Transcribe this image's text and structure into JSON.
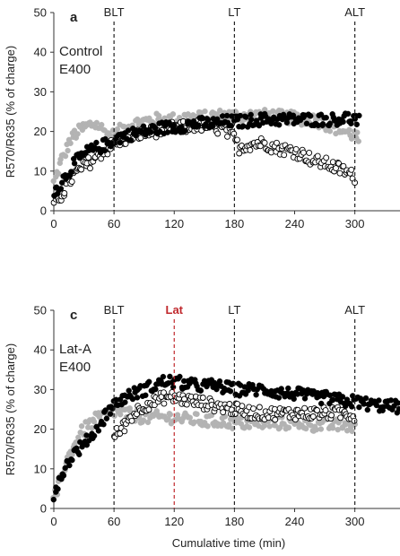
{
  "chart_data": [
    {
      "type": "scatter",
      "panel_letter": "a",
      "inset_lines": [
        "Control",
        "E400"
      ],
      "ylabel": "R570/R635 (% of charge)",
      "xlabel": "",
      "xlim": [
        0,
        345
      ],
      "ylim": [
        0,
        50
      ],
      "xticks": [
        0,
        60,
        120,
        180,
        240,
        300
      ],
      "yticks": [
        0,
        10,
        20,
        30,
        40,
        50
      ],
      "grid": false,
      "vlines": [
        {
          "x": 60,
          "label": "BLT",
          "color": "#222222"
        },
        {
          "x": 180,
          "label": "LT",
          "color": "#222222"
        },
        {
          "x": 300,
          "label": "ALT",
          "color": "#222222"
        }
      ],
      "series_colors": [
        "#000000",
        "#ffffff",
        "#b3b3b3"
      ],
      "series": [
        {
          "style": "filled-black",
          "x": [
            0,
            5,
            10,
            15,
            20,
            25,
            30,
            35,
            40,
            45,
            50,
            55,
            60,
            70,
            80,
            90,
            100,
            110,
            120,
            130,
            140,
            150,
            160,
            170,
            180,
            190,
            200,
            210,
            220,
            230,
            240,
            250,
            260,
            270,
            280,
            290,
            300,
            305
          ],
          "y": [
            5,
            6,
            8,
            10,
            12,
            13,
            14,
            15,
            15.5,
            16,
            16.5,
            17,
            18,
            19,
            19.5,
            20,
            20.5,
            21,
            21,
            21.5,
            22,
            22,
            22,
            22.5,
            22.5,
            22.5,
            23,
            23,
            23,
            23,
            23,
            23,
            23,
            23,
            23,
            23.5,
            23,
            22.5
          ]
        },
        {
          "style": "open-circle",
          "x": [
            0,
            5,
            10,
            15,
            20,
            25,
            30,
            35,
            40,
            45,
            50,
            55,
            60,
            70,
            80,
            90,
            100,
            110,
            120,
            130,
            140,
            150,
            160,
            170,
            180,
            185,
            190,
            200,
            210,
            220,
            230,
            240,
            250,
            260,
            270,
            280,
            290,
            300
          ],
          "y": [
            1,
            3,
            5,
            7,
            9,
            10,
            11,
            12,
            13,
            14,
            15,
            16,
            17,
            18,
            19,
            19.5,
            20,
            20.5,
            21,
            21,
            21.5,
            21.5,
            21,
            20.5,
            18,
            16,
            16.5,
            17,
            17,
            16,
            15.5,
            15,
            14,
            12.5,
            12,
            11,
            10,
            8.5
          ]
        },
        {
          "style": "filled-grey",
          "x": [
            0,
            5,
            10,
            15,
            20,
            25,
            30,
            35,
            40,
            45,
            50,
            55,
            60,
            70,
            80,
            90,
            100,
            110,
            120,
            130,
            140,
            150,
            160,
            170,
            180,
            190,
            200,
            210,
            220,
            230,
            240,
            250,
            260,
            270,
            280,
            290,
            300,
            305
          ],
          "y": [
            7,
            11,
            14,
            17,
            19,
            20,
            21,
            21.5,
            22,
            21.5,
            20,
            19,
            19,
            21,
            22,
            22.5,
            23,
            23,
            23,
            23.5,
            23.5,
            23.5,
            24,
            24,
            24,
            24,
            24,
            24,
            24,
            23.5,
            23.5,
            23,
            23,
            22,
            21,
            20,
            19,
            17.5
          ]
        }
      ]
    },
    {
      "type": "scatter",
      "panel_letter": "c",
      "inset_lines": [
        "Lat-A",
        "E400"
      ],
      "ylabel": "R570/R635 (% of charge)",
      "xlabel": "Cumulative time (min)",
      "xlim": [
        0,
        345
      ],
      "ylim": [
        0,
        50
      ],
      "xticks": [
        0,
        60,
        120,
        180,
        240,
        300
      ],
      "yticks": [
        0,
        10,
        20,
        30,
        40,
        50
      ],
      "grid": false,
      "vlines": [
        {
          "x": 60,
          "label": "BLT",
          "color": "#222222"
        },
        {
          "x": 120,
          "label": "Lat",
          "color": "#c0282d"
        },
        {
          "x": 180,
          "label": "LT",
          "color": "#222222"
        },
        {
          "x": 300,
          "label": "ALT",
          "color": "#222222"
        }
      ],
      "series_colors": [
        "#000000",
        "#ffffff",
        "#b3b3b3"
      ],
      "series": [
        {
          "style": "filled-black",
          "x": [
            0,
            5,
            10,
            15,
            20,
            25,
            30,
            35,
            40,
            45,
            50,
            55,
            60,
            70,
            80,
            90,
            100,
            110,
            120,
            130,
            140,
            150,
            160,
            170,
            180,
            190,
            200,
            210,
            220,
            230,
            240,
            250,
            260,
            270,
            280,
            290,
            300,
            310,
            320,
            330,
            345
          ],
          "y": [
            3,
            7,
            10,
            12,
            14,
            15,
            16,
            18,
            19,
            21,
            23,
            25,
            26,
            28,
            29,
            30,
            31,
            32,
            32,
            31.5,
            31,
            31,
            31,
            30.5,
            30,
            30,
            30,
            30,
            29.5,
            29,
            29,
            28.5,
            28,
            28,
            27.5,
            27,
            27,
            26.5,
            26,
            26,
            25.5
          ]
        },
        {
          "style": "open-circle",
          "x": [
            60,
            70,
            80,
            90,
            100,
            110,
            120,
            130,
            140,
            150,
            160,
            170,
            180,
            190,
            200,
            210,
            220,
            230,
            240,
            250,
            260,
            270,
            280,
            290,
            300
          ],
          "y": [
            18,
            21,
            24,
            26,
            27,
            28,
            28,
            27.5,
            27,
            26.5,
            26,
            25.5,
            25,
            24.5,
            24,
            24,
            24,
            24,
            24,
            24,
            24,
            24,
            24,
            24,
            23.5
          ]
        },
        {
          "style": "filled-grey",
          "x": [
            0,
            5,
            10,
            15,
            20,
            25,
            30,
            35,
            40,
            45,
            50,
            55,
            60,
            70,
            80,
            90,
            100,
            110,
            120,
            130,
            140,
            150,
            160,
            170,
            180,
            190,
            200,
            210,
            220,
            230,
            240,
            250,
            260,
            270,
            280,
            290,
            300
          ],
          "y": [
            2,
            6,
            10,
            13,
            16,
            18,
            20,
            21,
            22,
            23,
            23.5,
            24,
            24.5,
            24,
            23.5,
            23,
            23,
            23,
            23,
            22.5,
            22.5,
            22,
            22,
            22,
            21.5,
            21.5,
            21.5,
            21.5,
            21.5,
            21.5,
            21.5,
            21.5,
            21,
            21,
            21,
            21,
            20.5
          ]
        }
      ]
    }
  ]
}
